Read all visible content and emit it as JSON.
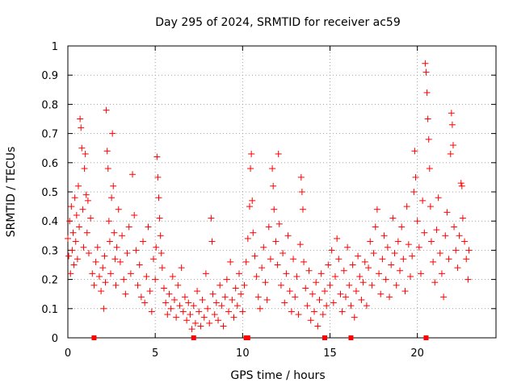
{
  "chart_data": {
    "type": "scatter",
    "title": "Day 295 of 2024, SRMTID for receiver ac59",
    "xlabel": "GPS time / hours",
    "ylabel": "SRMTID / TECUs",
    "xlim": [
      0,
      24.5
    ],
    "ylim": [
      0,
      1
    ],
    "x_ticks": [
      0,
      5,
      10,
      15,
      20
    ],
    "x_tick_labels": [
      "0",
      "5",
      "10",
      "15",
      "20"
    ],
    "y_ticks": [
      0,
      0.1,
      0.2,
      0.3,
      0.4,
      0.5,
      0.6,
      0.7,
      0.8,
      0.9,
      1
    ],
    "y_tick_labels": [
      "0",
      "0.1",
      "0.2",
      "0.3",
      "0.4",
      "0.5",
      "0.6",
      "0.7",
      "0.8",
      "0.9",
      "1"
    ],
    "grid": true,
    "marker": "+",
    "color": "#ff0000",
    "series": [
      {
        "name": "SRMTID",
        "points": [
          [
            0.0,
            0.34
          ],
          [
            0.05,
            0.28
          ],
          [
            0.1,
            0.4
          ],
          [
            0.15,
            0.22
          ],
          [
            0.2,
            0.45
          ],
          [
            0.25,
            0.3
          ],
          [
            0.3,
            0.36
          ],
          [
            0.35,
            0.25
          ],
          [
            0.4,
            0.48
          ],
          [
            0.45,
            0.33
          ],
          [
            0.5,
            0.42
          ],
          [
            0.55,
            0.27
          ],
          [
            0.6,
            0.52
          ],
          [
            0.65,
            0.38
          ],
          [
            0.7,
            0.75
          ],
          [
            0.75,
            0.72
          ],
          [
            0.8,
            0.65
          ],
          [
            0.85,
            0.44
          ],
          [
            0.9,
            0.31
          ],
          [
            0.95,
            0.58
          ],
          [
            1.0,
            0.63
          ],
          [
            1.05,
            0.49
          ],
          [
            1.1,
            0.36
          ],
          [
            1.15,
            0.47
          ],
          [
            1.2,
            0.29
          ],
          [
            1.3,
            0.41
          ],
          [
            1.4,
            0.22
          ],
          [
            1.5,
            0.18
          ],
          [
            1.6,
            0.26
          ],
          [
            1.7,
            0.31
          ],
          [
            1.8,
            0.21
          ],
          [
            1.9,
            0.16
          ],
          [
            2.0,
            0.24
          ],
          [
            2.05,
            0.1
          ],
          [
            2.1,
            0.28
          ],
          [
            2.15,
            0.19
          ],
          [
            2.2,
            0.78
          ],
          [
            2.25,
            0.64
          ],
          [
            2.3,
            0.58
          ],
          [
            2.35,
            0.4
          ],
          [
            2.4,
            0.33
          ],
          [
            2.45,
            0.22
          ],
          [
            2.5,
            0.48
          ],
          [
            2.55,
            0.7
          ],
          [
            2.6,
            0.52
          ],
          [
            2.65,
            0.36
          ],
          [
            2.7,
            0.27
          ],
          [
            2.75,
            0.18
          ],
          [
            2.8,
            0.31
          ],
          [
            2.9,
            0.44
          ],
          [
            3.0,
            0.26
          ],
          [
            3.1,
            0.35
          ],
          [
            3.2,
            0.2
          ],
          [
            3.3,
            0.15
          ],
          [
            3.4,
            0.29
          ],
          [
            3.5,
            0.38
          ],
          [
            3.6,
            0.22
          ],
          [
            3.7,
            0.56
          ],
          [
            3.8,
            0.42
          ],
          [
            3.9,
            0.3
          ],
          [
            4.0,
            0.18
          ],
          [
            4.1,
            0.25
          ],
          [
            4.2,
            0.14
          ],
          [
            4.3,
            0.33
          ],
          [
            4.4,
            0.12
          ],
          [
            4.5,
            0.21
          ],
          [
            4.6,
            0.38
          ],
          [
            4.7,
            0.16
          ],
          [
            4.8,
            0.09
          ],
          [
            4.9,
            0.27
          ],
          [
            5.0,
            0.2
          ],
          [
            5.05,
            0.31
          ],
          [
            5.1,
            0.62
          ],
          [
            5.15,
            0.55
          ],
          [
            5.2,
            0.48
          ],
          [
            5.25,
            0.41
          ],
          [
            5.3,
            0.35
          ],
          [
            5.35,
            0.29
          ],
          [
            5.4,
            0.24
          ],
          [
            5.5,
            0.17
          ],
          [
            5.6,
            0.12
          ],
          [
            5.7,
            0.08
          ],
          [
            5.8,
            0.15
          ],
          [
            5.9,
            0.1
          ],
          [
            6.0,
            0.21
          ],
          [
            6.1,
            0.13
          ],
          [
            6.2,
            0.07
          ],
          [
            6.3,
            0.18
          ],
          [
            6.4,
            0.11
          ],
          [
            6.5,
            0.24
          ],
          [
            6.6,
            0.09
          ],
          [
            6.7,
            0.14
          ],
          [
            6.8,
            0.06
          ],
          [
            6.9,
            0.12
          ],
          [
            7.0,
            0.08
          ],
          [
            7.1,
            0.03
          ],
          [
            7.2,
            0.11
          ],
          [
            7.3,
            0.05
          ],
          [
            7.4,
            0.16
          ],
          [
            7.5,
            0.09
          ],
          [
            7.6,
            0.04
          ],
          [
            7.7,
            0.13
          ],
          [
            7.8,
            0.07
          ],
          [
            7.9,
            0.22
          ],
          [
            8.0,
            0.1
          ],
          [
            8.1,
            0.05
          ],
          [
            8.2,
            0.41
          ],
          [
            8.25,
            0.33
          ],
          [
            8.3,
            0.15
          ],
          [
            8.4,
            0.08
          ],
          [
            8.5,
            0.12
          ],
          [
            8.6,
            0.06
          ],
          [
            8.7,
            0.18
          ],
          [
            8.8,
            0.11
          ],
          [
            8.9,
            0.04
          ],
          [
            9.0,
            0.14
          ],
          [
            9.1,
            0.2
          ],
          [
            9.2,
            0.09
          ],
          [
            9.3,
            0.26
          ],
          [
            9.4,
            0.13
          ],
          [
            9.5,
            0.07
          ],
          [
            9.6,
            0.17
          ],
          [
            9.7,
            0.11
          ],
          [
            9.8,
            0.22
          ],
          [
            9.9,
            0.15
          ],
          [
            10.0,
            0.09
          ],
          [
            10.1,
            0.18
          ],
          [
            10.2,
            0.26
          ],
          [
            10.3,
            0.34
          ],
          [
            10.4,
            0.45
          ],
          [
            10.45,
            0.58
          ],
          [
            10.5,
            0.63
          ],
          [
            10.55,
            0.47
          ],
          [
            10.6,
            0.36
          ],
          [
            10.7,
            0.28
          ],
          [
            10.8,
            0.21
          ],
          [
            10.9,
            0.14
          ],
          [
            11.0,
            0.1
          ],
          [
            11.1,
            0.24
          ],
          [
            11.2,
            0.31
          ],
          [
            11.3,
            0.19
          ],
          [
            11.4,
            0.13
          ],
          [
            11.5,
            0.38
          ],
          [
            11.6,
            0.27
          ],
          [
            11.7,
            0.58
          ],
          [
            11.75,
            0.52
          ],
          [
            11.8,
            0.44
          ],
          [
            11.9,
            0.33
          ],
          [
            12.0,
            0.25
          ],
          [
            12.05,
            0.63
          ],
          [
            12.1,
            0.39
          ],
          [
            12.2,
            0.18
          ],
          [
            12.3,
            0.29
          ],
          [
            12.4,
            0.12
          ],
          [
            12.5,
            0.22
          ],
          [
            12.6,
            0.35
          ],
          [
            12.7,
            0.16
          ],
          [
            12.8,
            0.09
          ],
          [
            12.9,
            0.27
          ],
          [
            13.0,
            0.14
          ],
          [
            13.1,
            0.21
          ],
          [
            13.2,
            0.08
          ],
          [
            13.3,
            0.32
          ],
          [
            13.35,
            0.55
          ],
          [
            13.4,
            0.5
          ],
          [
            13.45,
            0.44
          ],
          [
            13.5,
            0.26
          ],
          [
            13.6,
            0.17
          ],
          [
            13.7,
            0.11
          ],
          [
            13.8,
            0.23
          ],
          [
            13.9,
            0.06
          ],
          [
            14.0,
            0.15
          ],
          [
            14.1,
            0.09
          ],
          [
            14.2,
            0.19
          ],
          [
            14.3,
            0.04
          ],
          [
            14.4,
            0.13
          ],
          [
            14.5,
            0.22
          ],
          [
            14.6,
            0.08
          ],
          [
            14.7,
            0.16
          ],
          [
            14.8,
            0.11
          ],
          [
            14.9,
            0.25
          ],
          [
            15.0,
            0.18
          ],
          [
            15.1,
            0.3
          ],
          [
            15.2,
            0.12
          ],
          [
            15.3,
            0.21
          ],
          [
            15.4,
            0.34
          ],
          [
            15.5,
            0.27
          ],
          [
            15.6,
            0.15
          ],
          [
            15.7,
            0.09
          ],
          [
            15.8,
            0.23
          ],
          [
            15.9,
            0.14
          ],
          [
            16.0,
            0.31
          ],
          [
            16.1,
            0.18
          ],
          [
            16.2,
            0.11
          ],
          [
            16.3,
            0.25
          ],
          [
            16.4,
            0.07
          ],
          [
            16.5,
            0.16
          ],
          [
            16.6,
            0.28
          ],
          [
            16.7,
            0.21
          ],
          [
            16.8,
            0.13
          ],
          [
            16.9,
            0.19
          ],
          [
            17.0,
            0.26
          ],
          [
            17.1,
            0.11
          ],
          [
            17.2,
            0.24
          ],
          [
            17.3,
            0.33
          ],
          [
            17.4,
            0.18
          ],
          [
            17.5,
            0.29
          ],
          [
            17.6,
            0.38
          ],
          [
            17.7,
            0.44
          ],
          [
            17.8,
            0.22
          ],
          [
            17.9,
            0.15
          ],
          [
            18.0,
            0.27
          ],
          [
            18.1,
            0.35
          ],
          [
            18.2,
            0.2
          ],
          [
            18.3,
            0.31
          ],
          [
            18.4,
            0.14
          ],
          [
            18.5,
            0.25
          ],
          [
            18.6,
            0.41
          ],
          [
            18.7,
            0.29
          ],
          [
            18.8,
            0.18
          ],
          [
            18.9,
            0.33
          ],
          [
            19.0,
            0.23
          ],
          [
            19.1,
            0.38
          ],
          [
            19.2,
            0.27
          ],
          [
            19.3,
            0.16
          ],
          [
            19.4,
            0.45
          ],
          [
            19.5,
            0.32
          ],
          [
            19.6,
            0.21
          ],
          [
            19.7,
            0.28
          ],
          [
            19.8,
            0.5
          ],
          [
            19.85,
            0.64
          ],
          [
            19.9,
            0.55
          ],
          [
            20.0,
            0.4
          ],
          [
            20.1,
            0.31
          ],
          [
            20.2,
            0.22
          ],
          [
            20.3,
            0.47
          ],
          [
            20.4,
            0.36
          ],
          [
            20.45,
            0.94
          ],
          [
            20.5,
            0.91
          ],
          [
            20.55,
            0.84
          ],
          [
            20.6,
            0.75
          ],
          [
            20.65,
            0.68
          ],
          [
            20.7,
            0.58
          ],
          [
            20.75,
            0.45
          ],
          [
            20.8,
            0.33
          ],
          [
            20.9,
            0.26
          ],
          [
            21.0,
            0.19
          ],
          [
            21.1,
            0.37
          ],
          [
            21.2,
            0.48
          ],
          [
            21.3,
            0.29
          ],
          [
            21.4,
            0.22
          ],
          [
            21.5,
            0.14
          ],
          [
            21.6,
            0.35
          ],
          [
            21.7,
            0.43
          ],
          [
            21.8,
            0.27
          ],
          [
            21.9,
            0.63
          ],
          [
            21.95,
            0.77
          ],
          [
            22.0,
            0.73
          ],
          [
            22.05,
            0.66
          ],
          [
            22.1,
            0.38
          ],
          [
            22.2,
            0.3
          ],
          [
            22.3,
            0.24
          ],
          [
            22.4,
            0.35
          ],
          [
            22.5,
            0.53
          ],
          [
            22.55,
            0.52
          ],
          [
            22.6,
            0.41
          ],
          [
            22.7,
            0.33
          ],
          [
            22.8,
            0.27
          ],
          [
            22.9,
            0.2
          ],
          [
            22.95,
            0.3
          ]
        ],
        "zero_points": [
          1.5,
          7.2,
          10.2,
          10.3,
          14.7,
          16.2,
          20.5
        ]
      }
    ]
  }
}
